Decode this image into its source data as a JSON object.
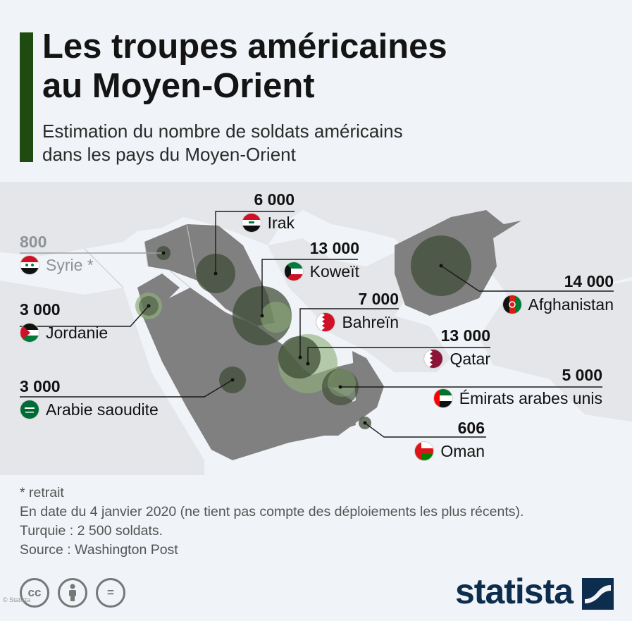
{
  "header": {
    "title_line1": "Les troupes américaines",
    "title_line2": "au Moyen-Orient",
    "subtitle_line1": "Estimation du nombre de soldats américains",
    "subtitle_line2": "dans les pays du Moyen-Orient"
  },
  "colors": {
    "accent": "#1f4a10",
    "bubble": "#3c4a33",
    "bubble_light": "#8fae7a",
    "land_highlight": "#808080",
    "land_other": "#e4e6e9",
    "sea": "#f0f3f7",
    "brand": "#0d2d4f"
  },
  "countries": [
    {
      "value": "6 000",
      "name": "Irak",
      "flag": "iraq-flag-icon"
    },
    {
      "value": "800",
      "name": "Syrie *",
      "flag": "syria-flag-icon",
      "muted": true
    },
    {
      "value": "13 000",
      "name": "Koweït",
      "flag": "kuwait-flag-icon"
    },
    {
      "value": "14 000",
      "name": "Afghanistan",
      "flag": "afghanistan-flag-icon"
    },
    {
      "value": "3 000",
      "name": "Jordanie",
      "flag": "jordan-flag-icon"
    },
    {
      "value": "7 000",
      "name": "Bahreïn",
      "flag": "bahrain-flag-icon"
    },
    {
      "value": "13 000",
      "name": "Qatar",
      "flag": "qatar-flag-icon"
    },
    {
      "value": "3 000",
      "name": "Arabie saoudite",
      "flag": "saudi-flag-icon"
    },
    {
      "value": "5 000",
      "name": "Émirats arabes unis",
      "flag": "uae-flag-icon"
    },
    {
      "value": "606",
      "name": "Oman",
      "flag": "oman-flag-icon"
    }
  ],
  "notes": {
    "line1": "* retrait",
    "line2": "En date du 4 janvier 2020 (ne tient pas compte des déploiements les plus récents).",
    "line3": "Turquie : 2 500 soldats.",
    "line4": "Source : Washington Post"
  },
  "footer": {
    "cc_label": "cc",
    "equals_label": "=",
    "brand": "statista",
    "watermark": "© Statista"
  }
}
